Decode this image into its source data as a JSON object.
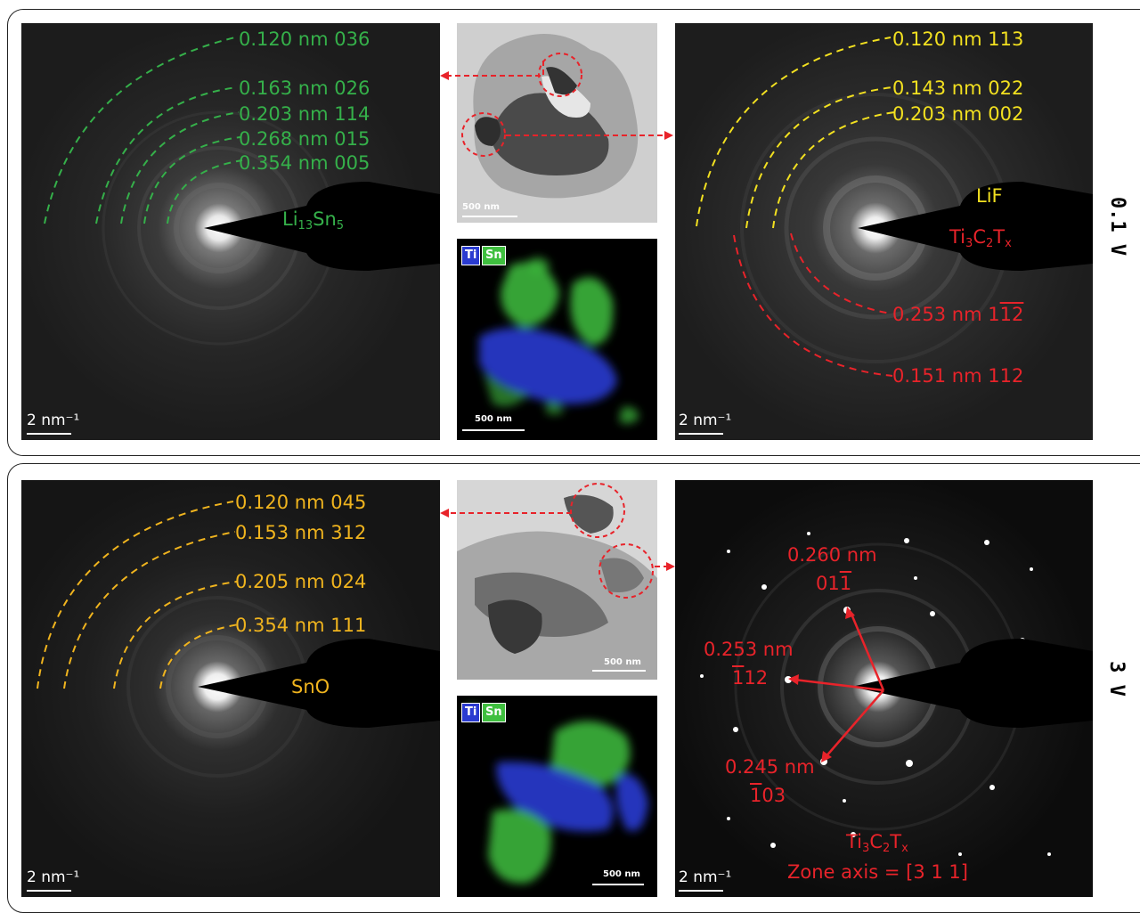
{
  "top_row": {
    "voltage": "0.1 V",
    "left_saed": {
      "scale_label": "2 nm⁻¹",
      "phase": {
        "base": "Li",
        "sub1": "13",
        "mid": "Sn",
        "sub2": "5"
      },
      "rings": [
        "0.120 nm 036",
        "0.163 nm 026",
        "0.203 nm 114",
        "0.268 nm 015",
        "0.354 nm 005"
      ]
    },
    "tem_image": {
      "scale_label": "500 nm"
    },
    "eds_map": {
      "scale_label": "500 nm",
      "legend": [
        "Ti",
        "Sn"
      ]
    },
    "right_saed": {
      "scale_label": "2 nm⁻¹",
      "phase_lif": "LiF",
      "phase_mxene": {
        "a": "Ti",
        "s1": "3",
        "b": "C",
        "s2": "2",
        "c": "T",
        "s3": "x"
      },
      "yellow_rings": [
        "0.120 nm 113",
        "0.143 nm 022",
        "0.203 nm 002"
      ],
      "red_ring_1": {
        "prefix": "0.253 nm 1",
        "over1": "1",
        "over2": "2"
      },
      "red_ring_2": "0.151 nm 112"
    }
  },
  "bottom_row": {
    "voltage": "3 V",
    "left_saed": {
      "scale_label": "2 nm⁻¹",
      "phase": "SnO",
      "rings": [
        "0.120 nm 045",
        "0.153 nm 312",
        "0.205 nm 024",
        "0.354 nm 111"
      ]
    },
    "tem_image": {
      "scale_label": "500 nm"
    },
    "eds_map": {
      "scale_label": "500 nm",
      "legend": [
        "Ti",
        "Sn"
      ]
    },
    "right_saed": {
      "scale_label": "2 nm⁻¹",
      "spot_1": {
        "d": "0.260 nm",
        "idx_plain": "01",
        "idx_over": "1"
      },
      "spot_2": {
        "d": "0.253 nm",
        "idx_over": "1",
        "idx_plain": "12"
      },
      "spot_3": {
        "d": "0.245 nm",
        "idx_over": "1",
        "idx_plain": "03"
      },
      "phase_mxene": {
        "a": "Ti",
        "s1": "3",
        "b": "C",
        "s2": "2",
        "c": "T",
        "s3": "x"
      },
      "zone_axis": "Zone axis = [3 1 1]"
    }
  },
  "colors": {
    "green": "#35b04a",
    "yellow": "#f2e020",
    "orange": "#f0b41e",
    "red": "#e8232a",
    "ti_blue": "#2a3bd0",
    "sn_green": "#3fbf3f"
  }
}
